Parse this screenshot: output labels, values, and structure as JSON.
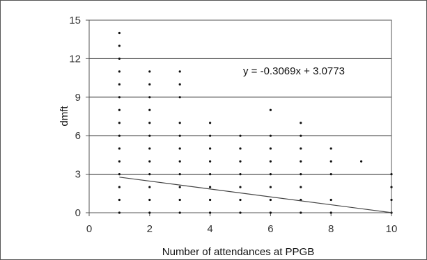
{
  "chart_data": {
    "type": "scatter",
    "xlabel": "Number of attendances at PPGB",
    "ylabel": "dmft",
    "xlim": [
      0,
      10
    ],
    "ylim": [
      0,
      15
    ],
    "x_ticks": [
      "0",
      "2",
      "4",
      "6",
      "8",
      "10"
    ],
    "y_ticks": [
      "0",
      "3",
      "6",
      "9",
      "12",
      "15"
    ],
    "grid": "horizontal",
    "annotation": "y = -0.3069x + 3.0773",
    "trendline": {
      "slope": -0.3069,
      "intercept": 3.0773,
      "x_range": [
        1,
        10
      ]
    },
    "points": [
      [
        1,
        0
      ],
      [
        1,
        1
      ],
      [
        1,
        2
      ],
      [
        1,
        3
      ],
      [
        1,
        4
      ],
      [
        1,
        5
      ],
      [
        1,
        6
      ],
      [
        1,
        7
      ],
      [
        1,
        8
      ],
      [
        1,
        9
      ],
      [
        1,
        10
      ],
      [
        1,
        11
      ],
      [
        1,
        12
      ],
      [
        1,
        13
      ],
      [
        1,
        14
      ],
      [
        2,
        0
      ],
      [
        2,
        1
      ],
      [
        2,
        2
      ],
      [
        2,
        3
      ],
      [
        2,
        4
      ],
      [
        2,
        5
      ],
      [
        2,
        6
      ],
      [
        2,
        7
      ],
      [
        2,
        8
      ],
      [
        2,
        9
      ],
      [
        2,
        10
      ],
      [
        2,
        11
      ],
      [
        3,
        0
      ],
      [
        3,
        1
      ],
      [
        3,
        2
      ],
      [
        3,
        3
      ],
      [
        3,
        4
      ],
      [
        3,
        5
      ],
      [
        3,
        6
      ],
      [
        3,
        7
      ],
      [
        3,
        9
      ],
      [
        3,
        10
      ],
      [
        3,
        11
      ],
      [
        4,
        0
      ],
      [
        4,
        1
      ],
      [
        4,
        2
      ],
      [
        4,
        3
      ],
      [
        4,
        4
      ],
      [
        4,
        5
      ],
      [
        4,
        6
      ],
      [
        4,
        7
      ],
      [
        5,
        0
      ],
      [
        5,
        1
      ],
      [
        5,
        2
      ],
      [
        5,
        3
      ],
      [
        5,
        4
      ],
      [
        5,
        5
      ],
      [
        5,
        6
      ],
      [
        6,
        0
      ],
      [
        6,
        1
      ],
      [
        6,
        2
      ],
      [
        6,
        3
      ],
      [
        6,
        4
      ],
      [
        6,
        5
      ],
      [
        6,
        6
      ],
      [
        6,
        8
      ],
      [
        7,
        0
      ],
      [
        7,
        1
      ],
      [
        7,
        2
      ],
      [
        7,
        3
      ],
      [
        7,
        4
      ],
      [
        7,
        5
      ],
      [
        7,
        6
      ],
      [
        7,
        7
      ],
      [
        8,
        0
      ],
      [
        8,
        1
      ],
      [
        8,
        3
      ],
      [
        8,
        4
      ],
      [
        8,
        5
      ],
      [
        9,
        4
      ],
      [
        10,
        0
      ],
      [
        10,
        1
      ],
      [
        10,
        2
      ],
      [
        10,
        3
      ]
    ]
  }
}
